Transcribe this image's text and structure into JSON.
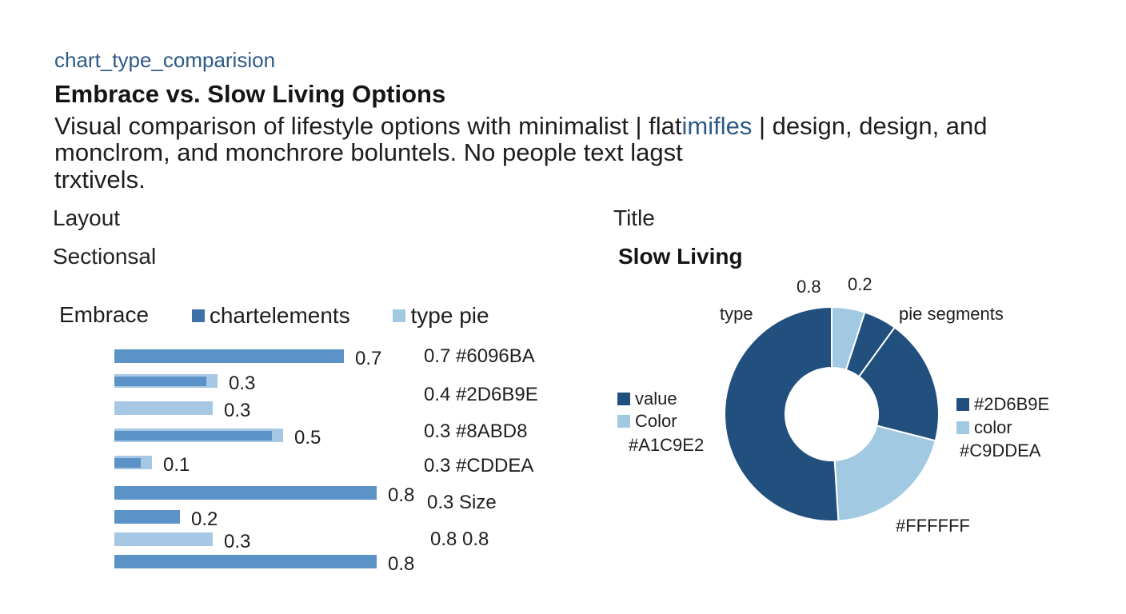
{
  "header": {
    "tag": "chart_type_comparision",
    "title": "Embrace vs. Slow Living Options",
    "desc_line1_a": "Visual comparison of lifestyle options with minimalist  | flat",
    "desc_line1_b": "imifles",
    "desc_line1_c": " | design, design, and",
    "desc_line2": "monclrom, and monchrore boluntels. No people text lagst",
    "desc_line3": "trxtivels."
  },
  "sections": {
    "layout_label": "Layout",
    "layout_value": "Sectionsal",
    "title_label": "Title",
    "pie_title": "Slow Living"
  },
  "colors": {
    "dark_blue": "#2D6B9E",
    "mid_blue": "#6096BA",
    "light_blue": "#A1C9E2",
    "pie_dark": "#22507E",
    "white": "#FFFFFF"
  },
  "chart_data": [
    {
      "type": "bar",
      "orientation": "horizontal",
      "legend": [
        {
          "label": "Embrace"
        },
        {
          "label": "chartelements",
          "color": "#3D72A8"
        },
        {
          "label": "type pie",
          "color": "#A1C9E2"
        }
      ],
      "bars": [
        {
          "value": 0.7,
          "label": "0.7",
          "shade": "mid",
          "overlay": null
        },
        {
          "value": 0.3,
          "label": "0.3",
          "shade": "light",
          "overlay": "mid"
        },
        {
          "value": 0.3,
          "label": "0.3",
          "shade": "light",
          "overlay": null
        },
        {
          "value": 0.5,
          "label": "0.5",
          "shade": "light",
          "overlay": "mid"
        },
        {
          "value": 0.1,
          "label": "0.1",
          "shade": "light",
          "overlay": "mid"
        },
        {
          "value": 0.8,
          "label": "0.8",
          "shade": "mid",
          "overlay": null
        },
        {
          "value": 0.2,
          "label": "0.2",
          "shade": "mid",
          "overlay": null
        },
        {
          "value": 0.3,
          "label": "0.3",
          "shade": "light",
          "overlay": null
        },
        {
          "value": 0.8,
          "label": "0.8",
          "shade": "mid",
          "overlay": null
        }
      ],
      "side_labels": [
        "0.7  #6096BA",
        "0.4  #2D6B9E",
        "0.3  #8ABD8",
        "0.3  #CDDEA",
        "0.3  Size",
        "0.8  0.8"
      ]
    },
    {
      "type": "pie",
      "title": "Slow Living",
      "segments": [
        {
          "value": 0.05,
          "color": "#A1C9E2",
          "label": "0.8"
        },
        {
          "value": 0.05,
          "color": "#22507E",
          "label": "0.2"
        },
        {
          "value": 0.19,
          "color": "#22507E",
          "label": "pie segments"
        },
        {
          "value": 0.2,
          "color": "#A1C9E2",
          "label": "#FFFFFF"
        },
        {
          "value": 0.51,
          "color": "#22507E",
          "label": "type"
        }
      ],
      "legend_left": [
        {
          "label": "value",
          "color": "#22507E"
        },
        {
          "label": "Color",
          "color": "#A1C9E2"
        },
        {
          "label": "#A1C9E2"
        }
      ],
      "legend_right": [
        {
          "label": "#2D6B9E",
          "color": "#22507E"
        },
        {
          "label": "color",
          "color": "#A1C9E2"
        },
        {
          "label": "#C9DDEA"
        }
      ]
    }
  ]
}
